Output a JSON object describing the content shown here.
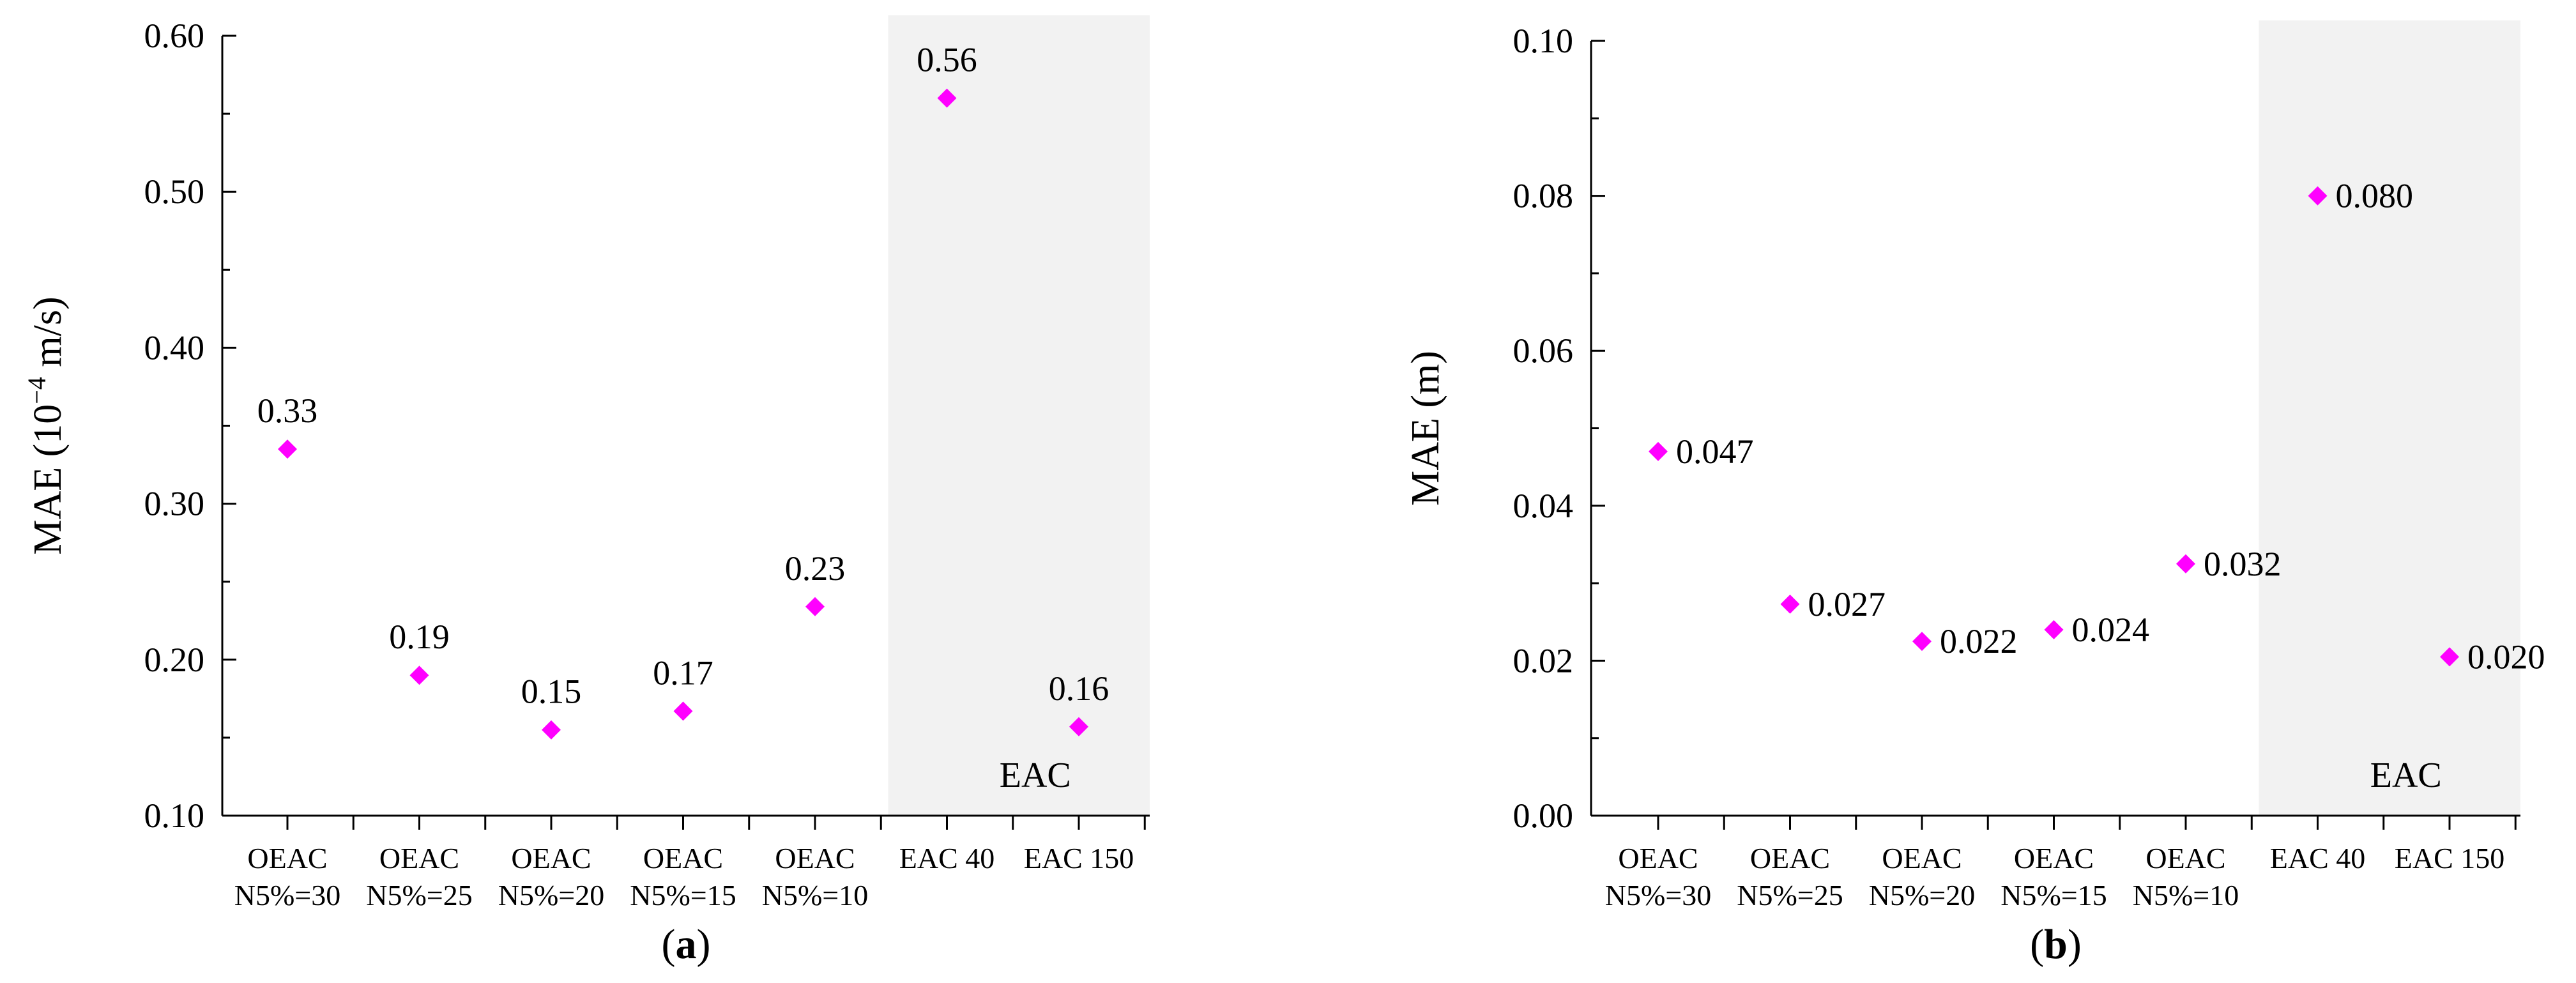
{
  "chart_data": [
    {
      "type": "scatter",
      "panel_label": "(a)",
      "panel_letter": "a",
      "title": "",
      "xlabel": "",
      "ylabel_prefix": "MAE (10",
      "ylabel_exponent": "−4",
      "ylabel_suffix": " m/s)",
      "ylim": [
        0.1,
        0.6
      ],
      "yticks": [
        "0.10",
        "0.20",
        "0.30",
        "0.40",
        "0.50",
        "0.60"
      ],
      "categories": [
        [
          "OEAC",
          "N5%=30"
        ],
        [
          "OEAC",
          "N5%=25"
        ],
        [
          "OEAC",
          "N5%=20"
        ],
        [
          "OEAC",
          "N5%=15"
        ],
        [
          "OEAC",
          "N5%=10"
        ],
        [
          "EAC 40"
        ],
        [
          "EAC 150"
        ]
      ],
      "values": [
        0.335,
        0.19,
        0.155,
        0.167,
        0.234,
        0.56,
        0.157
      ],
      "data_labels": [
        "0.33",
        "0.19",
        "0.15",
        "0.17",
        "0.23",
        "0.56",
        "0.16"
      ],
      "label_position": "above",
      "shaded_region": {
        "from_category": 5,
        "to_category": 6,
        "label": "EAC"
      },
      "marker_color": "#ff00ff",
      "shade_color": "#f2f2f2"
    },
    {
      "type": "scatter",
      "panel_label": "(b)",
      "panel_letter": "b",
      "title": "",
      "xlabel": "",
      "ylabel_prefix": "MAE (m)",
      "ylabel_exponent": "",
      "ylabel_suffix": "",
      "ylim": [
        0.0,
        0.1
      ],
      "yticks": [
        "0.00",
        "0.02",
        "0.04",
        "0.06",
        "0.08",
        "0.10"
      ],
      "categories": [
        [
          "OEAC",
          "N5%=30"
        ],
        [
          "OEAC",
          "N5%=25"
        ],
        [
          "OEAC",
          "N5%=20"
        ],
        [
          "OEAC",
          "N5%=15"
        ],
        [
          "OEAC",
          "N5%=10"
        ],
        [
          "EAC 40"
        ],
        [
          "EAC 150"
        ]
      ],
      "values": [
        0.047,
        0.0273,
        0.0225,
        0.024,
        0.0325,
        0.08,
        0.0205
      ],
      "data_labels": [
        "0.047",
        "0.027",
        "0.022",
        "0.024",
        "0.032",
        "0.080",
        "0.020"
      ],
      "label_position": "right",
      "shaded_region": {
        "from_category": 5,
        "to_category": 6,
        "label": "EAC"
      },
      "marker_color": "#ff00ff",
      "shade_color": "#f2f2f2"
    }
  ]
}
